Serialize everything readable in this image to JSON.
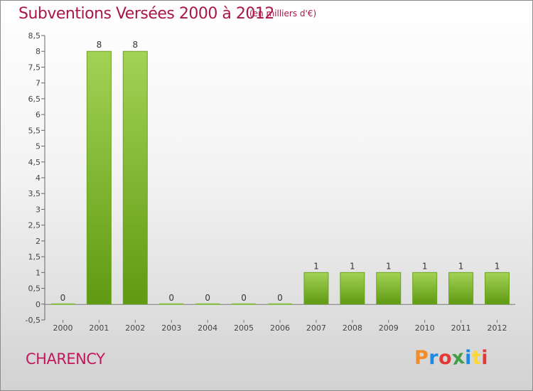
{
  "header": {
    "title": "Subventions Versées 2000 à 2012",
    "subtitle": "(en milliers d'€)"
  },
  "footer": {
    "commune": "CHARENCY",
    "logo_text": "Proxiti",
    "logo_colors": [
      "#f28c28",
      "#1e88e5",
      "#e53935",
      "#43a047",
      "#1e88e5",
      "#fdd835",
      "#e53935"
    ]
  },
  "chart_data": {
    "type": "bar",
    "title": "Subventions Versées 2000 à 2012",
    "subtitle": "(en milliers d'€)",
    "categories": [
      "2000",
      "2001",
      "2002",
      "2003",
      "2004",
      "2005",
      "2006",
      "2007",
      "2008",
      "2009",
      "2010",
      "2011",
      "2012"
    ],
    "values": [
      0,
      8,
      8,
      0,
      0,
      0,
      0,
      1,
      1,
      1,
      1,
      1,
      1
    ],
    "data_labels": [
      "0",
      "8",
      "8",
      "0",
      "0",
      "0",
      "0",
      "1",
      "1",
      "1",
      "1",
      "1",
      "1"
    ],
    "ylim": [
      -0.5,
      8.5
    ],
    "yticks": [
      "-0,5",
      "0",
      "0,5",
      "1",
      "1,5",
      "2",
      "2,5",
      "3",
      "3,5",
      "4",
      "4,5",
      "5",
      "5,5",
      "6",
      "6,5",
      "7",
      "7,5",
      "8",
      "8,5"
    ],
    "ytick_values": [
      -0.5,
      0,
      0.5,
      1,
      1.5,
      2,
      2.5,
      3,
      3.5,
      4,
      4.5,
      5,
      5.5,
      6,
      6.5,
      7,
      7.5,
      8,
      8.5
    ],
    "xlabel": "",
    "ylabel": "",
    "grid": false,
    "bar_color": "#7cb82f"
  }
}
